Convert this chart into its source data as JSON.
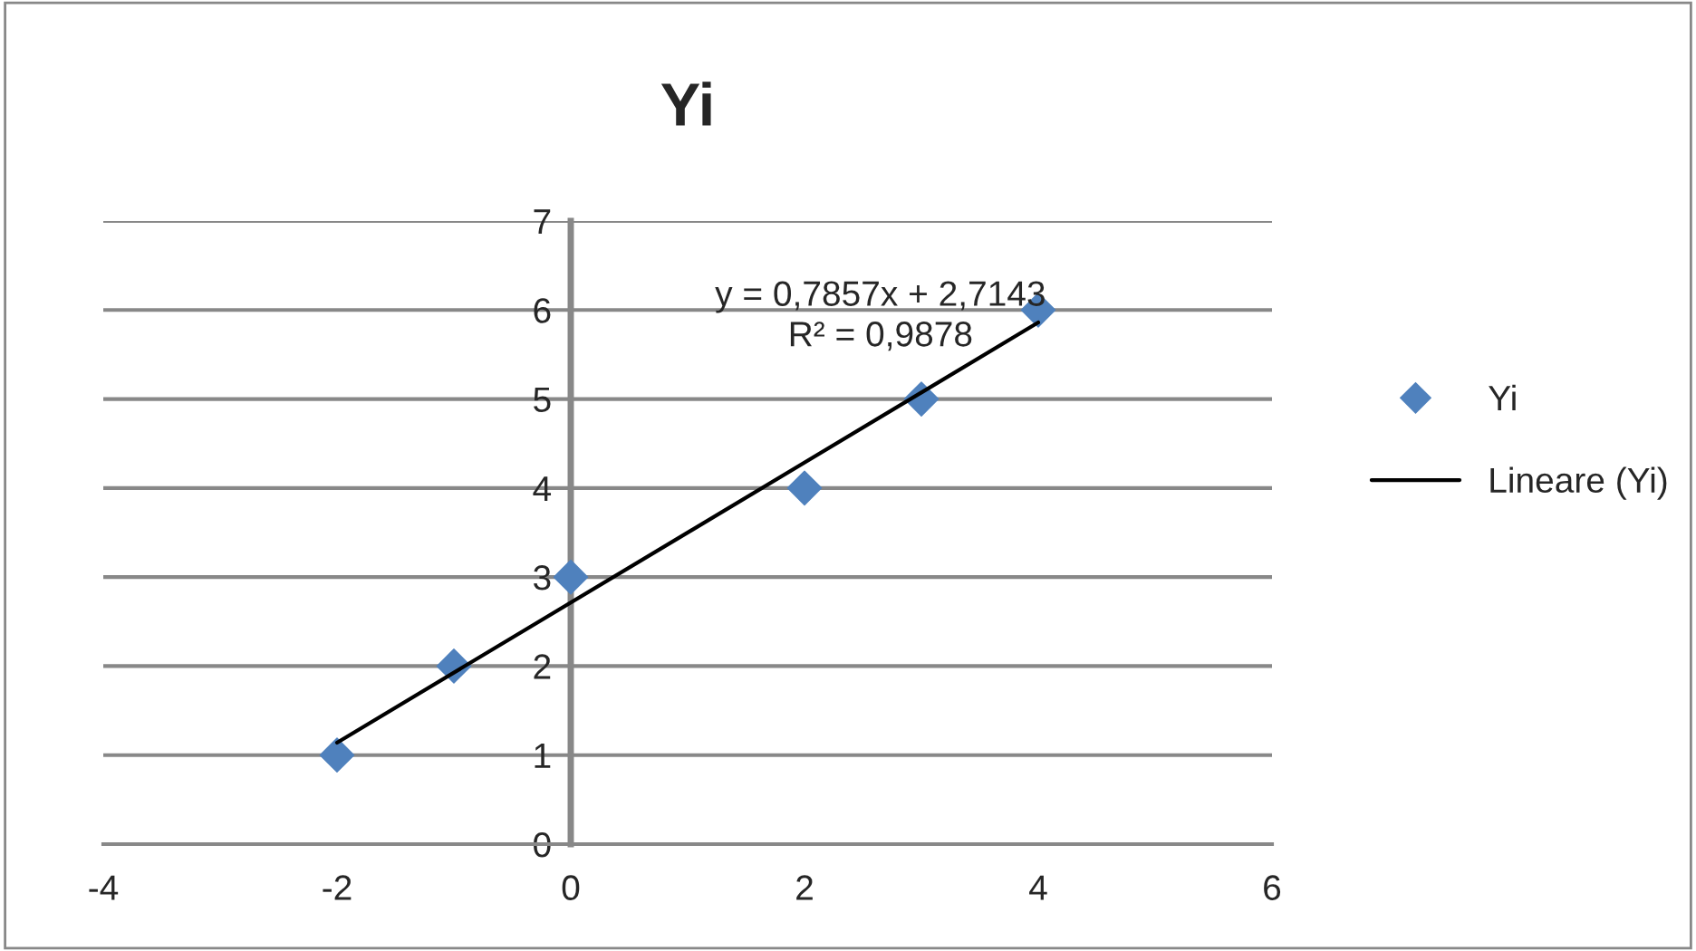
{
  "chart_data": {
    "type": "scatter",
    "title": "Yi",
    "series": [
      {
        "name": "Yi",
        "color": "#4f81bd",
        "marker": "diamond",
        "x": [
          -2,
          -1,
          0,
          2,
          3,
          4
        ],
        "values": [
          1,
          2,
          3,
          4,
          5,
          6
        ]
      },
      {
        "name": "Lineare (Yi)",
        "type": "line",
        "color": "#000000",
        "marker": "none",
        "line_style": "solid",
        "x": [
          -2,
          4
        ],
        "values": [
          1.14,
          5.86
        ]
      }
    ],
    "xlim": [
      -4,
      6
    ],
    "xticks": [
      -4,
      -2,
      0,
      2,
      4,
      6
    ],
    "ylim": [
      0,
      7
    ],
    "yticks": [
      0,
      1,
      2,
      3,
      4,
      5,
      6,
      7
    ],
    "grid": "y",
    "legend": "right",
    "annotations": [
      "y = 0,7857x + 2,7143\nR² = 0,9878"
    ]
  }
}
